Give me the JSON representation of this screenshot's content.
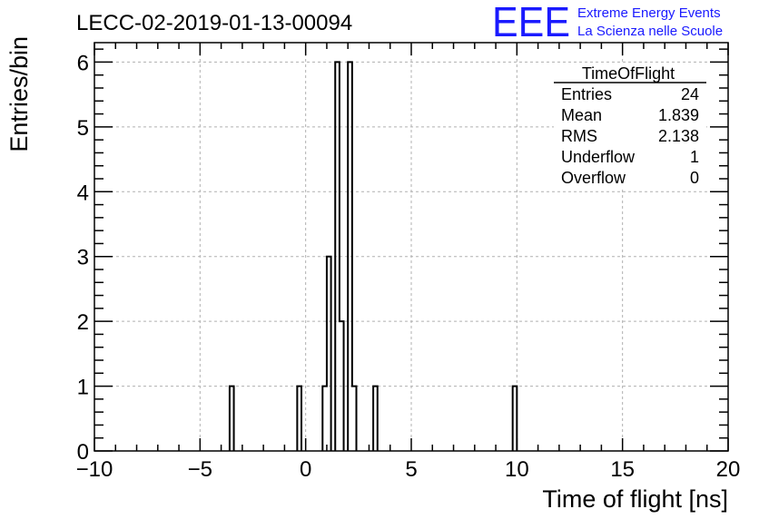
{
  "chart_data": {
    "type": "histogram",
    "title": "LECC-02-2019-01-13-00094",
    "xlabel": "Time of flight [ns]",
    "ylabel": "Entries/bin",
    "xlim": [
      -10,
      20
    ],
    "ylim": [
      0,
      6.3
    ],
    "grid": true,
    "x_ticks": [
      "−10",
      "−5",
      "0",
      "5",
      "10",
      "15",
      "20"
    ],
    "x_tick_values": [
      -10,
      -5,
      0,
      5,
      10,
      15,
      20
    ],
    "y_ticks": [
      "0",
      "1",
      "2",
      "3",
      "4",
      "5",
      "6"
    ],
    "y_tick_values": [
      0,
      1,
      2,
      3,
      4,
      5,
      6
    ],
    "bin_width": 0.2,
    "bins": [
      {
        "x0": -3.6,
        "x1": -3.4,
        "value": 1
      },
      {
        "x0": -0.4,
        "x1": -0.2,
        "value": 1
      },
      {
        "x0": 0.8,
        "x1": 1.0,
        "value": 1
      },
      {
        "x0": 1.0,
        "x1": 1.2,
        "value": 3
      },
      {
        "x0": 1.4,
        "x1": 1.6,
        "value": 6
      },
      {
        "x0": 1.6,
        "x1": 1.8,
        "value": 2
      },
      {
        "x0": 2.0,
        "x1": 2.2,
        "value": 6
      },
      {
        "x0": 2.2,
        "x1": 2.4,
        "value": 1
      },
      {
        "x0": 3.2,
        "x1": 3.4,
        "value": 1
      },
      {
        "x0": 9.8,
        "x1": 10.0,
        "value": 1
      }
    ],
    "stats_box": {
      "title": "TimeOfFlight",
      "rows": [
        {
          "label": "Entries",
          "value": "24"
        },
        {
          "label": "Mean",
          "value": "1.839"
        },
        {
          "label": "RMS",
          "value": "2.138"
        },
        {
          "label": "Underflow",
          "value": "1"
        },
        {
          "label": "Overflow",
          "value": "0"
        }
      ]
    },
    "logo": {
      "text": "EEE",
      "line1": "Extreme Energy Events",
      "line2": "La Scienza nelle Scuole",
      "color": "#1a1aff"
    },
    "line_color": "#000000",
    "grid_color": "#b0b0b0"
  }
}
